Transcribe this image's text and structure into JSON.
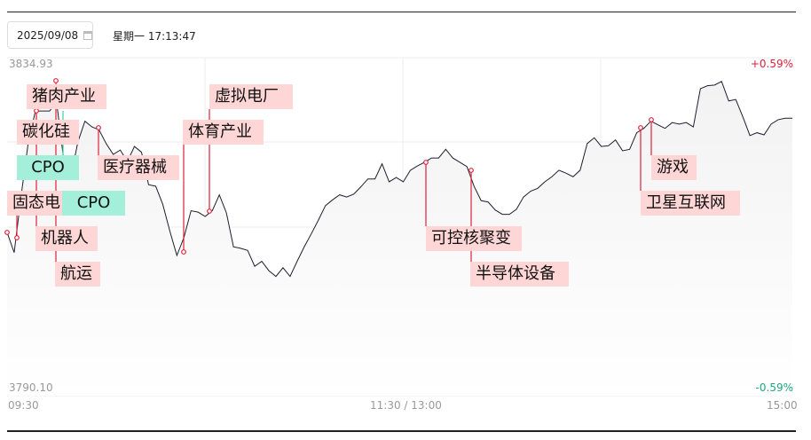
{
  "header": {
    "date": "2025/09/08",
    "weekday_time": "星期一 17:13:47",
    "calendar_icon": "calendar-icon"
  },
  "colors": {
    "up": "#e0203a",
    "down": "#1aa97a",
    "line": "#1e1e2e",
    "marker": "#e0203a",
    "tag_red": "#ffd6d6",
    "tag_green": "#a3efd9"
  },
  "chart_data": {
    "type": "line",
    "x_ticks": [
      "09:30",
      "11:30 / 13:00",
      "15:00"
    ],
    "y_max": 3834.93,
    "y_min": 3790.1,
    "y_max_label": "3834.93",
    "y_min_label": "3790.10",
    "pct_max_label": "+0.59%",
    "pct_min_label": "-0.59%",
    "grid": true,
    "values": [
      3811.6,
      3808.8,
      3816.8,
      3824.1,
      3828.4,
      3828.4,
      3828.4,
      3829.6,
      3821.7,
      3819.2,
      3824.1,
      3827.0,
      3826.2,
      3825.8,
      3823.9,
      3822.4,
      3823.0,
      3821.4,
      3823.5,
      3822.7,
      3818.2,
      3818.0,
      3815.5,
      3811.8,
      3808.4,
      3810.9,
      3814.6,
      3814.4,
      3813.8,
      3814.6,
      3816.8,
      3814.3,
      3809.6,
      3809.4,
      3809.1,
      3806.9,
      3807.6,
      3806.3,
      3805.5,
      3806.7,
      3805.5,
      3807.6,
      3809.6,
      3811.4,
      3813.3,
      3815.3,
      3816.1,
      3816.8,
      3816.5,
      3816.9,
      3817.9,
      3819.0,
      3819.0,
      3821.1,
      3818.6,
      3819.2,
      3818.6,
      3820.2,
      3820.8,
      3821.3,
      3821.9,
      3821.9,
      3823.1,
      3821.9,
      3821.3,
      3820.7,
      3818.0,
      3816.0,
      3815.8,
      3814.7,
      3814.1,
      3814.1,
      3814.8,
      3816.5,
      3817.3,
      3817.7,
      3818.6,
      3819.3,
      3820.2,
      3819.8,
      3819.3,
      3820.2,
      3823.9,
      3824.7,
      3823.5,
      3823.6,
      3824.4,
      3822.9,
      3823.1,
      3825.4,
      3826.0,
      3827.0,
      3826.5,
      3826.0,
      3826.8,
      3826.6,
      3826.8,
      3826.2,
      3831.5,
      3831.9,
      3832.0,
      3832.5,
      3829.8,
      3830.0,
      3827.6,
      3825.0,
      3825.4,
      3825.1,
      3826.6,
      3827.2,
      3827.4,
      3827.4
    ]
  },
  "annotations": [
    {
      "label": "猪肉产业",
      "kind": "red"
    },
    {
      "label": "碳化硅",
      "kind": "red"
    },
    {
      "label": "CPO",
      "kind": "green"
    },
    {
      "label": "固态电",
      "kind": "red"
    },
    {
      "label": "CPO",
      "kind": "green"
    },
    {
      "label": "机器人",
      "kind": "red"
    },
    {
      "label": "航运",
      "kind": "red"
    },
    {
      "label": "医疗器械",
      "kind": "red"
    },
    {
      "label": "体育产业",
      "kind": "red"
    },
    {
      "label": "虚拟电厂",
      "kind": "red"
    },
    {
      "label": "可控核聚变",
      "kind": "red"
    },
    {
      "label": "半导体设备",
      "kind": "red"
    },
    {
      "label": "游戏",
      "kind": "red"
    },
    {
      "label": "卫星互联网",
      "kind": "red"
    }
  ]
}
